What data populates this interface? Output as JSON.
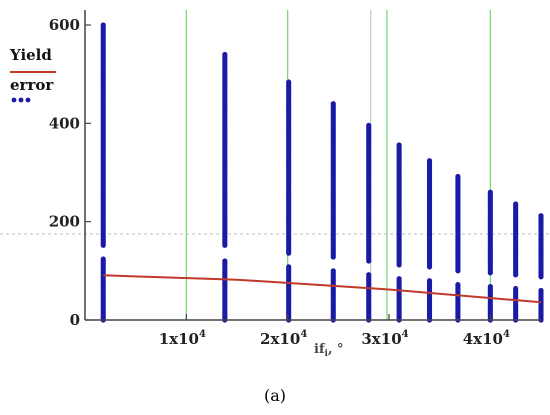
{
  "caption": "(a)",
  "chart_data": {
    "type": "scatter",
    "xlabel_main": "if",
    "xlabel_sub": "i",
    "xlabel_tail": ", °",
    "xlim": [
      0,
      45000
    ],
    "ylim": [
      0,
      600
    ],
    "y_ticks": [
      {
        "value": 0,
        "label": "0"
      },
      {
        "value": 200,
        "label": "200"
      },
      {
        "value": 400,
        "label": "400"
      },
      {
        "value": 600,
        "label": "600"
      }
    ],
    "x_ticks": [
      {
        "value": 10000,
        "mantissa": "1x10",
        "exp": "4"
      },
      {
        "value": 20000,
        "mantissa": "2x10",
        "exp": "4"
      },
      {
        "value": 30000,
        "mantissa": "3x10",
        "exp": "4"
      },
      {
        "value": 40000,
        "mantissa": "4x10",
        "exp": "4"
      }
    ],
    "vertical_gridlines_x": [
      10000,
      20000,
      29800,
      40000
    ],
    "faint_vertical_x": [
      28200
    ],
    "reference_line_y": 175,
    "series": [
      {
        "name": "Yield",
        "kind": "line",
        "color": "#c0392b",
        "points": [
          [
            1800,
            91
          ],
          [
            15000,
            82
          ],
          [
            30000,
            62
          ],
          [
            45000,
            36
          ]
        ]
      },
      {
        "name": "error",
        "kind": "scatter",
        "color": "#1a1aa6",
        "columns": [
          {
            "x": 1800,
            "ymax": 600,
            "gap": [
              125,
              150
            ]
          },
          {
            "x": 13800,
            "ymax": 540,
            "gap": [
              120,
              150
            ]
          },
          {
            "x": 20100,
            "ymax": 485,
            "gap": [
              110,
              135
            ]
          },
          {
            "x": 24500,
            "ymax": 440,
            "gap": [
              100,
              125
            ]
          },
          {
            "x": 28000,
            "ymax": 398,
            "gap": [
              95,
              120
            ]
          },
          {
            "x": 31000,
            "ymax": 358,
            "gap": [
              85,
              110
            ]
          },
          {
            "x": 34000,
            "ymax": 325,
            "gap": [
              80,
              105
            ]
          },
          {
            "x": 36800,
            "ymax": 292,
            "gap": [
              75,
              100
            ]
          },
          {
            "x": 40000,
            "ymax": 262,
            "gap": [
              70,
              95
            ]
          },
          {
            "x": 42500,
            "ymax": 238,
            "gap": [
              65,
              90
            ]
          },
          {
            "x": 45000,
            "ymax": 215,
            "gap": [
              60,
              85
            ]
          }
        ]
      }
    ]
  }
}
